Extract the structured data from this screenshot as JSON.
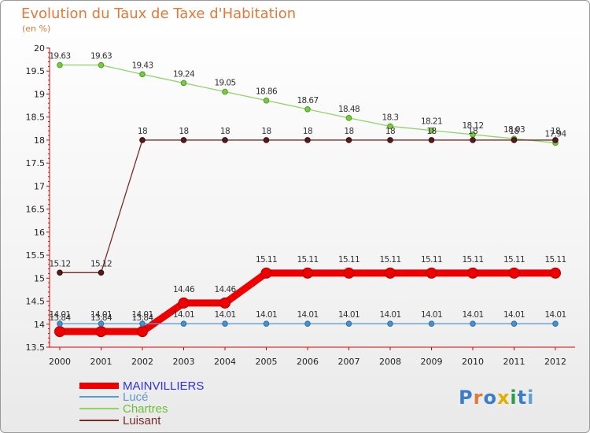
{
  "header": {
    "title": "Evolution du Taux de Taxe d'Habitation",
    "unit": "(en %)"
  },
  "logo": {
    "text": "Proxiti",
    "colors": [
      "#3b7dc8",
      "#e07a3a",
      "#3b7dc8",
      "#e0b000",
      "#2c9e4b",
      "#3b7dc8",
      "#5aa2d8"
    ]
  },
  "chart_data": {
    "type": "line",
    "title": "Evolution du Taux de Taxe d'Habitation",
    "ylabel": "(en %)",
    "xlabel": "",
    "x": [
      "2000",
      "2001",
      "2002",
      "2003",
      "2004",
      "2005",
      "2006",
      "2007",
      "2008",
      "2009",
      "2010",
      "2011",
      "2012"
    ],
    "ylim": [
      13.5,
      20
    ],
    "yticks": [
      "13.5",
      "14",
      "14.5",
      "15",
      "15.5",
      "16",
      "16.5",
      "17",
      "17.5",
      "18",
      "18.5",
      "19",
      "19.5",
      "20"
    ],
    "grid": false,
    "legend_position": "bottom-left",
    "series": [
      {
        "name": "MAINVILLIERS",
        "color": "#ee0000",
        "values": [
          13.84,
          13.84,
          13.84,
          14.46,
          14.46,
          15.11,
          15.11,
          15.11,
          15.11,
          15.11,
          15.11,
          15.11,
          15.11
        ],
        "labels": [
          "13.84",
          "13.84",
          "13.84",
          "14.46",
          "14.46",
          "15.11",
          "15.11",
          "15.11",
          "15.11",
          "15.11",
          "15.11",
          "15.11",
          "15.11"
        ]
      },
      {
        "name": "Lucé",
        "color": "#5b9bd5",
        "values": [
          14.01,
          14.01,
          14.01,
          14.01,
          14.01,
          14.01,
          14.01,
          14.01,
          14.01,
          14.01,
          14.01,
          14.01,
          14.01
        ],
        "labels": [
          "14.01",
          "14.01",
          "14.01",
          "14.01",
          "14.01",
          "14.01",
          "14.01",
          "14.01",
          "14.01",
          "14.01",
          "14.01",
          "14.01",
          "14.01"
        ]
      },
      {
        "name": "Chartres",
        "color": "#8fd46a",
        "values": [
          19.63,
          19.63,
          19.43,
          19.24,
          19.05,
          18.86,
          18.67,
          18.48,
          18.3,
          18.21,
          18.12,
          18.03,
          17.94
        ],
        "labels": [
          "19.63",
          "19.63",
          "19.43",
          "19.24",
          "19.05",
          "18.86",
          "18.67",
          "18.48",
          "18.3",
          "18.21",
          "18.12",
          "18.03",
          "17.94"
        ]
      },
      {
        "name": "Luisant",
        "color": "#7a2a2a",
        "values": [
          15.12,
          15.12,
          18,
          18,
          18,
          18,
          18,
          18,
          18,
          18,
          18,
          18,
          18
        ],
        "labels": [
          "15.12",
          "15.12",
          "18",
          "18",
          "18",
          "18",
          "18",
          "18",
          "18",
          "18",
          "18",
          "18",
          "18"
        ]
      }
    ]
  }
}
